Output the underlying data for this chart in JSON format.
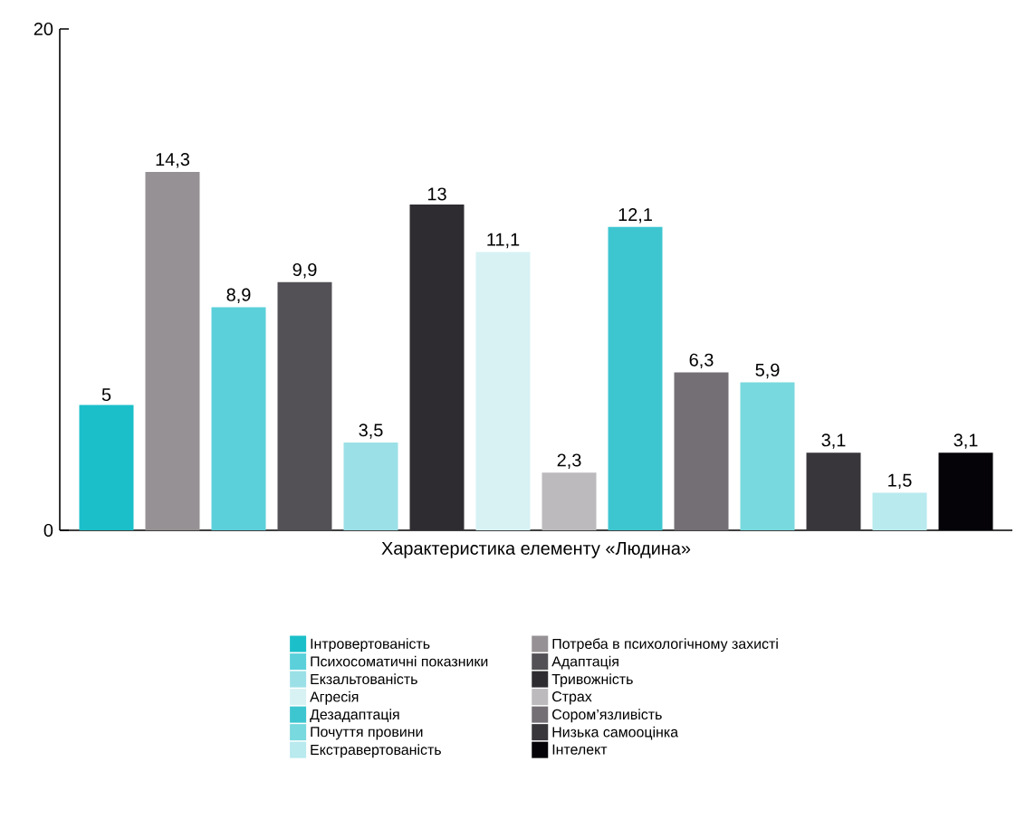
{
  "chart_data": {
    "type": "bar",
    "categories": [
      "Характеристика елементу «Людина»"
    ],
    "ylim": [
      0,
      20
    ],
    "yticks": [
      0,
      20
    ],
    "legend": "bottom",
    "series": [
      {
        "name": "Інтровертованість",
        "color": "#1bbfc9",
        "values": [
          5
        ],
        "value_labels": [
          "5"
        ]
      },
      {
        "name": "Потреба в психологічному захисті",
        "color": "#969194",
        "values": [
          14.3
        ],
        "value_labels": [
          "14,3"
        ]
      },
      {
        "name": "Психосоматичні показники",
        "color": "#5bd0da",
        "values": [
          8.9
        ],
        "value_labels": [
          "8,9"
        ]
      },
      {
        "name": "Адаптація",
        "color": "#535156",
        "values": [
          9.9
        ],
        "value_labels": [
          "9,9"
        ]
      },
      {
        "name": "Екзальтованість",
        "color": "#9be0e7",
        "values": [
          3.5
        ],
        "value_labels": [
          "3,5"
        ]
      },
      {
        "name": "Тривожність",
        "color": "#2e2c31",
        "values": [
          13
        ],
        "value_labels": [
          "13"
        ]
      },
      {
        "name": "Агресія",
        "color": "#d8f2f4",
        "values": [
          11.1
        ],
        "value_labels": [
          "11,1"
        ]
      },
      {
        "name": "Страх",
        "color": "#bcbabd",
        "values": [
          2.3
        ],
        "value_labels": [
          "2,3"
        ]
      },
      {
        "name": "Дезадаптація",
        "color": "#3ec6d0",
        "values": [
          12.1
        ],
        "value_labels": [
          "12,1"
        ]
      },
      {
        "name": "Сором’язливість",
        "color": "#746f75",
        "values": [
          6.3
        ],
        "value_labels": [
          "6,3"
        ]
      },
      {
        "name": "Почуття провини",
        "color": "#78d9de",
        "values": [
          5.9
        ],
        "value_labels": [
          "5,9"
        ]
      },
      {
        "name": "Низька самооцінка",
        "color": "#38363b",
        "values": [
          3.1
        ],
        "value_labels": [
          "3,1"
        ]
      },
      {
        "name": "Екстравертованість",
        "color": "#b8eaee",
        "values": [
          1.5
        ],
        "value_labels": [
          "1,5"
        ]
      },
      {
        "name": "Інтелект",
        "color": "#050308",
        "values": [
          3.1
        ],
        "value_labels": [
          "3,1"
        ]
      }
    ]
  }
}
